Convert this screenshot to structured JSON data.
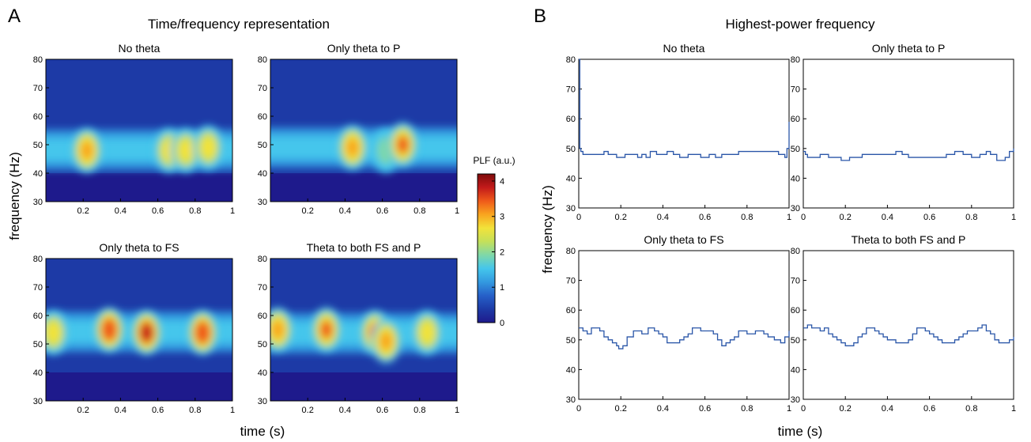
{
  "panel_a": {
    "letter": "A",
    "title": "Time/frequency representation",
    "ylabel": "frequency (Hz)",
    "xlabel": "time (s)",
    "colorbar": {
      "label": "PLF (a.u.)",
      "ticks": [
        "0",
        "1",
        "2",
        "3",
        "4"
      ],
      "colors": [
        "#1e1a8c",
        "#1d3aa6",
        "#2660c8",
        "#3399e0",
        "#44c6ec",
        "#7fd8a8",
        "#c4e05a",
        "#f2e23a",
        "#f9a51f",
        "#ef5a1a",
        "#c21a1a",
        "#7e0b0b"
      ]
    }
  },
  "panel_b": {
    "letter": "B",
    "title": "Highest-power frequency",
    "ylabel": "frequency (Hz)",
    "xlabel": "time (s)",
    "line_color": "#2a56a8"
  },
  "chart_data": [
    {
      "type": "heatmap",
      "title": "No theta",
      "xlim": [
        0,
        1
      ],
      "ylim": [
        30,
        80
      ],
      "xticks": [
        "0.2",
        "0.4",
        "0.6",
        "0.8",
        "1"
      ],
      "yticks": [
        "30",
        "40",
        "50",
        "60",
        "70",
        "80"
      ],
      "blobs": [
        {
          "t": 0.22,
          "f": 48,
          "v": 3.0
        },
        {
          "t": 0.66,
          "f": 48,
          "v": 2.7
        },
        {
          "t": 0.75,
          "f": 48,
          "v": 2.6
        },
        {
          "t": 0.87,
          "f": 49,
          "v": 2.6
        }
      ]
    },
    {
      "type": "heatmap",
      "title": "Only theta to P",
      "xlim": [
        0,
        1
      ],
      "ylim": [
        30,
        80
      ],
      "xticks": [
        "0.2",
        "0.4",
        "0.6",
        "0.8",
        "1"
      ],
      "yticks": [
        "30",
        "40",
        "50",
        "60",
        "70",
        "80"
      ],
      "blobs": [
        {
          "t": 0.44,
          "f": 49,
          "v": 2.9
        },
        {
          "t": 0.62,
          "f": 48,
          "v": 2.0
        },
        {
          "t": 0.71,
          "f": 50,
          "v": 3.4
        }
      ]
    },
    {
      "type": "heatmap",
      "title": "Only theta to FS",
      "xlim": [
        0,
        1
      ],
      "ylim": [
        30,
        80
      ],
      "xticks": [
        "0.2",
        "0.4",
        "0.6",
        "0.8",
        "1"
      ],
      "yticks": [
        "30",
        "40",
        "50",
        "60",
        "70",
        "80"
      ],
      "blobs": [
        {
          "t": 0.04,
          "f": 54,
          "v": 2.8
        },
        {
          "t": 0.34,
          "f": 55,
          "v": 3.6
        },
        {
          "t": 0.54,
          "f": 54,
          "v": 3.7
        },
        {
          "t": 0.84,
          "f": 54,
          "v": 3.5
        }
      ]
    },
    {
      "type": "heatmap",
      "title": "Theta to both FS and P",
      "xlim": [
        0,
        1
      ],
      "ylim": [
        30,
        80
      ],
      "xticks": [
        "0.2",
        "0.4",
        "0.6",
        "0.8",
        "1"
      ],
      "yticks": [
        "30",
        "40",
        "50",
        "60",
        "70",
        "80"
      ],
      "blobs": [
        {
          "t": 0.04,
          "f": 55,
          "v": 3.1
        },
        {
          "t": 0.3,
          "f": 55,
          "v": 3.3
        },
        {
          "t": 0.56,
          "f": 54,
          "v": 3.4
        },
        {
          "t": 0.62,
          "f": 51,
          "v": 3.0
        },
        {
          "t": 0.84,
          "f": 54,
          "v": 2.7
        }
      ]
    },
    {
      "type": "line",
      "title": "No theta",
      "xlim": [
        0,
        1
      ],
      "ylim": [
        30,
        80
      ],
      "xticks": [
        "0",
        "0.2",
        "0.4",
        "0.6",
        "0.8",
        "1"
      ],
      "yticks": [
        "30",
        "40",
        "50",
        "60",
        "70",
        "80"
      ],
      "x": [
        0,
        0.005,
        0.01,
        0.02,
        0.12,
        0.14,
        0.17,
        0.18,
        0.22,
        0.25,
        0.28,
        0.3,
        0.32,
        0.34,
        0.37,
        0.4,
        0.42,
        0.45,
        0.48,
        0.52,
        0.55,
        0.58,
        0.62,
        0.65,
        0.68,
        0.72,
        0.76,
        0.8,
        0.85,
        0.9,
        0.95,
        0.98,
        0.99,
        1.0
      ],
      "y": [
        80,
        50,
        49,
        48,
        49,
        48,
        48,
        47,
        48,
        48,
        47,
        48,
        47,
        49,
        48,
        48,
        49,
        48,
        47,
        48,
        48,
        47,
        48,
        47,
        48,
        48,
        49,
        49,
        49,
        49,
        48,
        47,
        50,
        59
      ]
    },
    {
      "type": "line",
      "title": "Only theta to P",
      "xlim": [
        0,
        1
      ],
      "ylim": [
        30,
        80
      ],
      "xticks": [
        "0",
        "0.2",
        "0.4",
        "0.6",
        "0.8",
        "1"
      ],
      "yticks": [
        "30",
        "40",
        "50",
        "60",
        "70",
        "80"
      ],
      "x": [
        0,
        0.01,
        0.02,
        0.06,
        0.08,
        0.12,
        0.16,
        0.18,
        0.22,
        0.28,
        0.34,
        0.4,
        0.44,
        0.47,
        0.5,
        0.56,
        0.62,
        0.68,
        0.72,
        0.76,
        0.8,
        0.84,
        0.87,
        0.89,
        0.92,
        0.96,
        0.98,
        1.0
      ],
      "y": [
        49,
        48,
        47,
        47,
        48,
        47,
        47,
        46,
        47,
        48,
        48,
        48,
        49,
        48,
        47,
        47,
        47,
        48,
        49,
        48,
        47,
        48,
        49,
        48,
        46,
        47,
        49,
        50
      ]
    },
    {
      "type": "line",
      "title": "Only theta to FS",
      "xlim": [
        0,
        1
      ],
      "ylim": [
        30,
        80
      ],
      "xticks": [
        "0",
        "0.2",
        "0.4",
        "0.6",
        "0.8",
        "1"
      ],
      "yticks": [
        "30",
        "40",
        "50",
        "60",
        "70",
        "80"
      ],
      "x": [
        0,
        0.02,
        0.04,
        0.06,
        0.1,
        0.12,
        0.14,
        0.16,
        0.18,
        0.19,
        0.21,
        0.23,
        0.26,
        0.3,
        0.33,
        0.36,
        0.38,
        0.4,
        0.42,
        0.46,
        0.48,
        0.5,
        0.52,
        0.54,
        0.58,
        0.62,
        0.64,
        0.66,
        0.68,
        0.7,
        0.72,
        0.74,
        0.76,
        0.8,
        0.84,
        0.88,
        0.9,
        0.93,
        0.96,
        0.98,
        1.0
      ],
      "y": [
        54,
        53,
        52,
        54,
        53,
        51,
        50,
        49,
        48,
        47,
        48,
        51,
        53,
        52,
        54,
        53,
        52,
        51,
        49,
        49,
        50,
        51,
        52,
        54,
        53,
        53,
        52,
        50,
        48,
        49,
        50,
        51,
        53,
        52,
        53,
        52,
        51,
        50,
        49,
        51,
        53
      ]
    },
    {
      "type": "line",
      "title": "Theta to both FS and P",
      "xlim": [
        0,
        1
      ],
      "ylim": [
        30,
        80
      ],
      "xticks": [
        "0",
        "0.2",
        "0.4",
        "0.6",
        "0.8",
        "1"
      ],
      "yticks": [
        "30",
        "40",
        "50",
        "60",
        "70",
        "80"
      ],
      "x": [
        0,
        0.02,
        0.04,
        0.08,
        0.1,
        0.12,
        0.14,
        0.16,
        0.18,
        0.2,
        0.22,
        0.24,
        0.26,
        0.28,
        0.3,
        0.34,
        0.36,
        0.38,
        0.4,
        0.44,
        0.48,
        0.5,
        0.52,
        0.54,
        0.58,
        0.6,
        0.62,
        0.64,
        0.66,
        0.7,
        0.72,
        0.74,
        0.76,
        0.78,
        0.8,
        0.83,
        0.85,
        0.87,
        0.89,
        0.91,
        0.93,
        0.96,
        0.98,
        1.0
      ],
      "y": [
        54,
        55,
        54,
        53,
        54,
        52,
        51,
        50,
        49,
        48,
        48,
        49,
        51,
        52,
        54,
        53,
        52,
        51,
        50,
        49,
        49,
        50,
        52,
        54,
        53,
        52,
        51,
        50,
        49,
        49,
        50,
        51,
        52,
        53,
        53,
        54,
        55,
        53,
        52,
        50,
        49,
        49,
        50,
        51
      ]
    }
  ]
}
